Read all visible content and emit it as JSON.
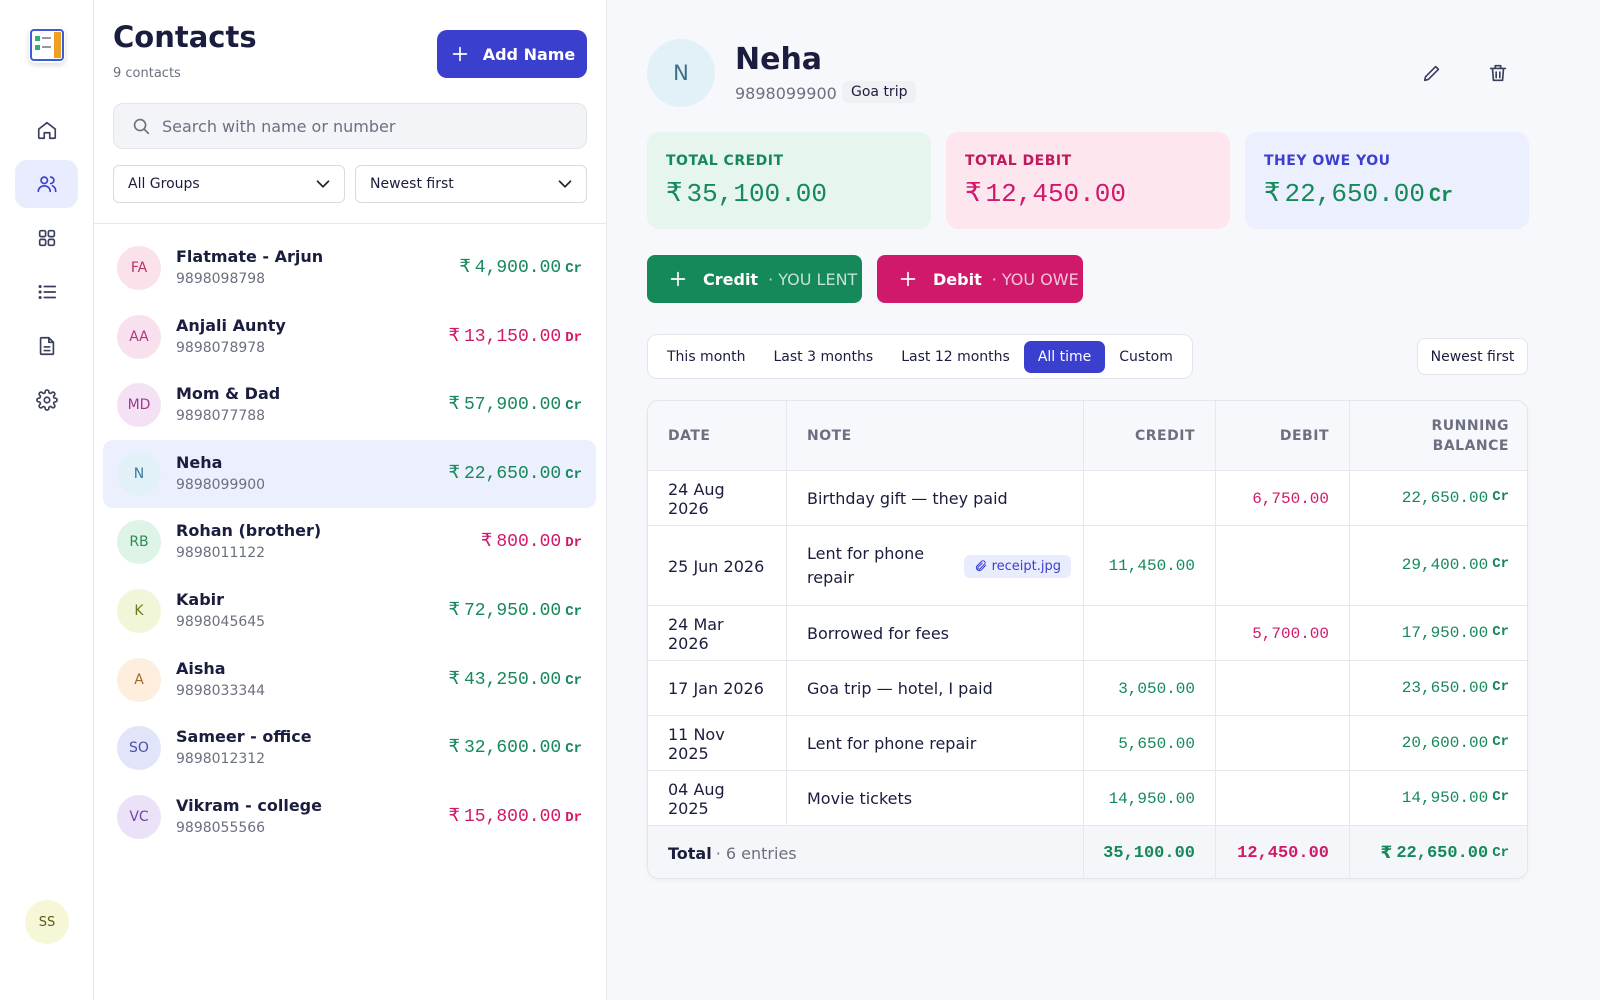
{
  "currency": "₹",
  "sidebar": {
    "user_initials": "SS"
  },
  "contacts_panel": {
    "title": "Contacts",
    "count": "9 contacts",
    "add_button": "Add Name",
    "search_placeholder": "Search with name or number",
    "group_filter": "All Groups",
    "sort": "Newest first",
    "contacts": [
      {
        "initials": "FA",
        "name": "Flatmate - Arjun",
        "phone": "9898098798",
        "amount": "4,900.00",
        "type": "Cr"
      },
      {
        "initials": "AA",
        "name": "Anjali Aunty",
        "phone": "9898078978",
        "amount": "13,150.00",
        "type": "Dr"
      },
      {
        "initials": "MD",
        "name": "Mom & Dad",
        "phone": "9898077788",
        "amount": "57,900.00",
        "type": "Cr"
      },
      {
        "initials": "N",
        "name": "Neha",
        "phone": "9898099900",
        "amount": "22,650.00",
        "type": "Cr",
        "selected": true
      },
      {
        "initials": "RB",
        "name": "Rohan (brother)",
        "phone": "9898011122",
        "amount": "800.00",
        "type": "Dr"
      },
      {
        "initials": "K",
        "name": "Kabir",
        "phone": "9898045645",
        "amount": "72,950.00",
        "type": "Cr"
      },
      {
        "initials": "A",
        "name": "Aisha",
        "phone": "9898033344",
        "amount": "43,250.00",
        "type": "Cr"
      },
      {
        "initials": "SO",
        "name": "Sameer - office",
        "phone": "9898012312",
        "amount": "32,600.00",
        "type": "Cr"
      },
      {
        "initials": "VC",
        "name": "Vikram - college",
        "phone": "9898055566",
        "amount": "15,800.00",
        "type": "Dr"
      }
    ]
  },
  "detail": {
    "initial": "N",
    "name": "Neha",
    "phone": "9898099900",
    "tag": "Goa trip",
    "stats": [
      {
        "label": "TOTAL CREDIT",
        "amount": "35,100.00"
      },
      {
        "label": "TOTAL DEBIT",
        "amount": "12,450.00"
      },
      {
        "label": "THEY OWE YOU",
        "amount": "22,650.00",
        "type": "Cr"
      }
    ],
    "actions": [
      {
        "label": "Credit",
        "hint": "· YOU LENT"
      },
      {
        "label": "Debit",
        "hint": "· YOU OWE"
      }
    ],
    "periods": [
      {
        "label": "This month"
      },
      {
        "label": "Last 3 months"
      },
      {
        "label": "Last 12 months"
      },
      {
        "label": "All time",
        "active": true
      },
      {
        "label": "Custom"
      }
    ],
    "sort": "Newest first",
    "table": {
      "columns": [
        "DATE",
        "NOTE",
        "CREDIT",
        "DEBIT",
        "RUNNING BALANCE"
      ],
      "rows": [
        {
          "date": "24 Aug 2026",
          "note": "Birthday gift — they paid",
          "debit": "6,750.00",
          "balance": "22,650.00",
          "type": "Cr"
        },
        {
          "date": "25 Jun 2026",
          "note": "Lent for phone repair",
          "attachment": "receipt.jpg",
          "credit": "11,450.00",
          "balance": "29,400.00",
          "type": "Cr"
        },
        {
          "date": "24 Mar 2026",
          "note": "Borrowed for fees",
          "debit": "5,700.00",
          "balance": "17,950.00",
          "type": "Cr"
        },
        {
          "date": "17 Jan 2026",
          "note": "Goa trip — hotel, I paid",
          "credit": "3,050.00",
          "balance": "23,650.00",
          "type": "Cr"
        },
        {
          "date": "11 Nov 2025",
          "note": "Lent for phone repair",
          "credit": "5,650.00",
          "balance": "20,600.00",
          "type": "Cr"
        },
        {
          "date": "04 Aug 2025",
          "note": "Movie tickets",
          "credit": "14,950.00",
          "balance": "14,950.00",
          "type": "Cr"
        }
      ],
      "total": {
        "label": "Total",
        "entries": "· 6 entries",
        "credit": "35,100.00",
        "debit": "12,450.00",
        "balance": "22,650.00",
        "type": "Cr"
      }
    }
  }
}
